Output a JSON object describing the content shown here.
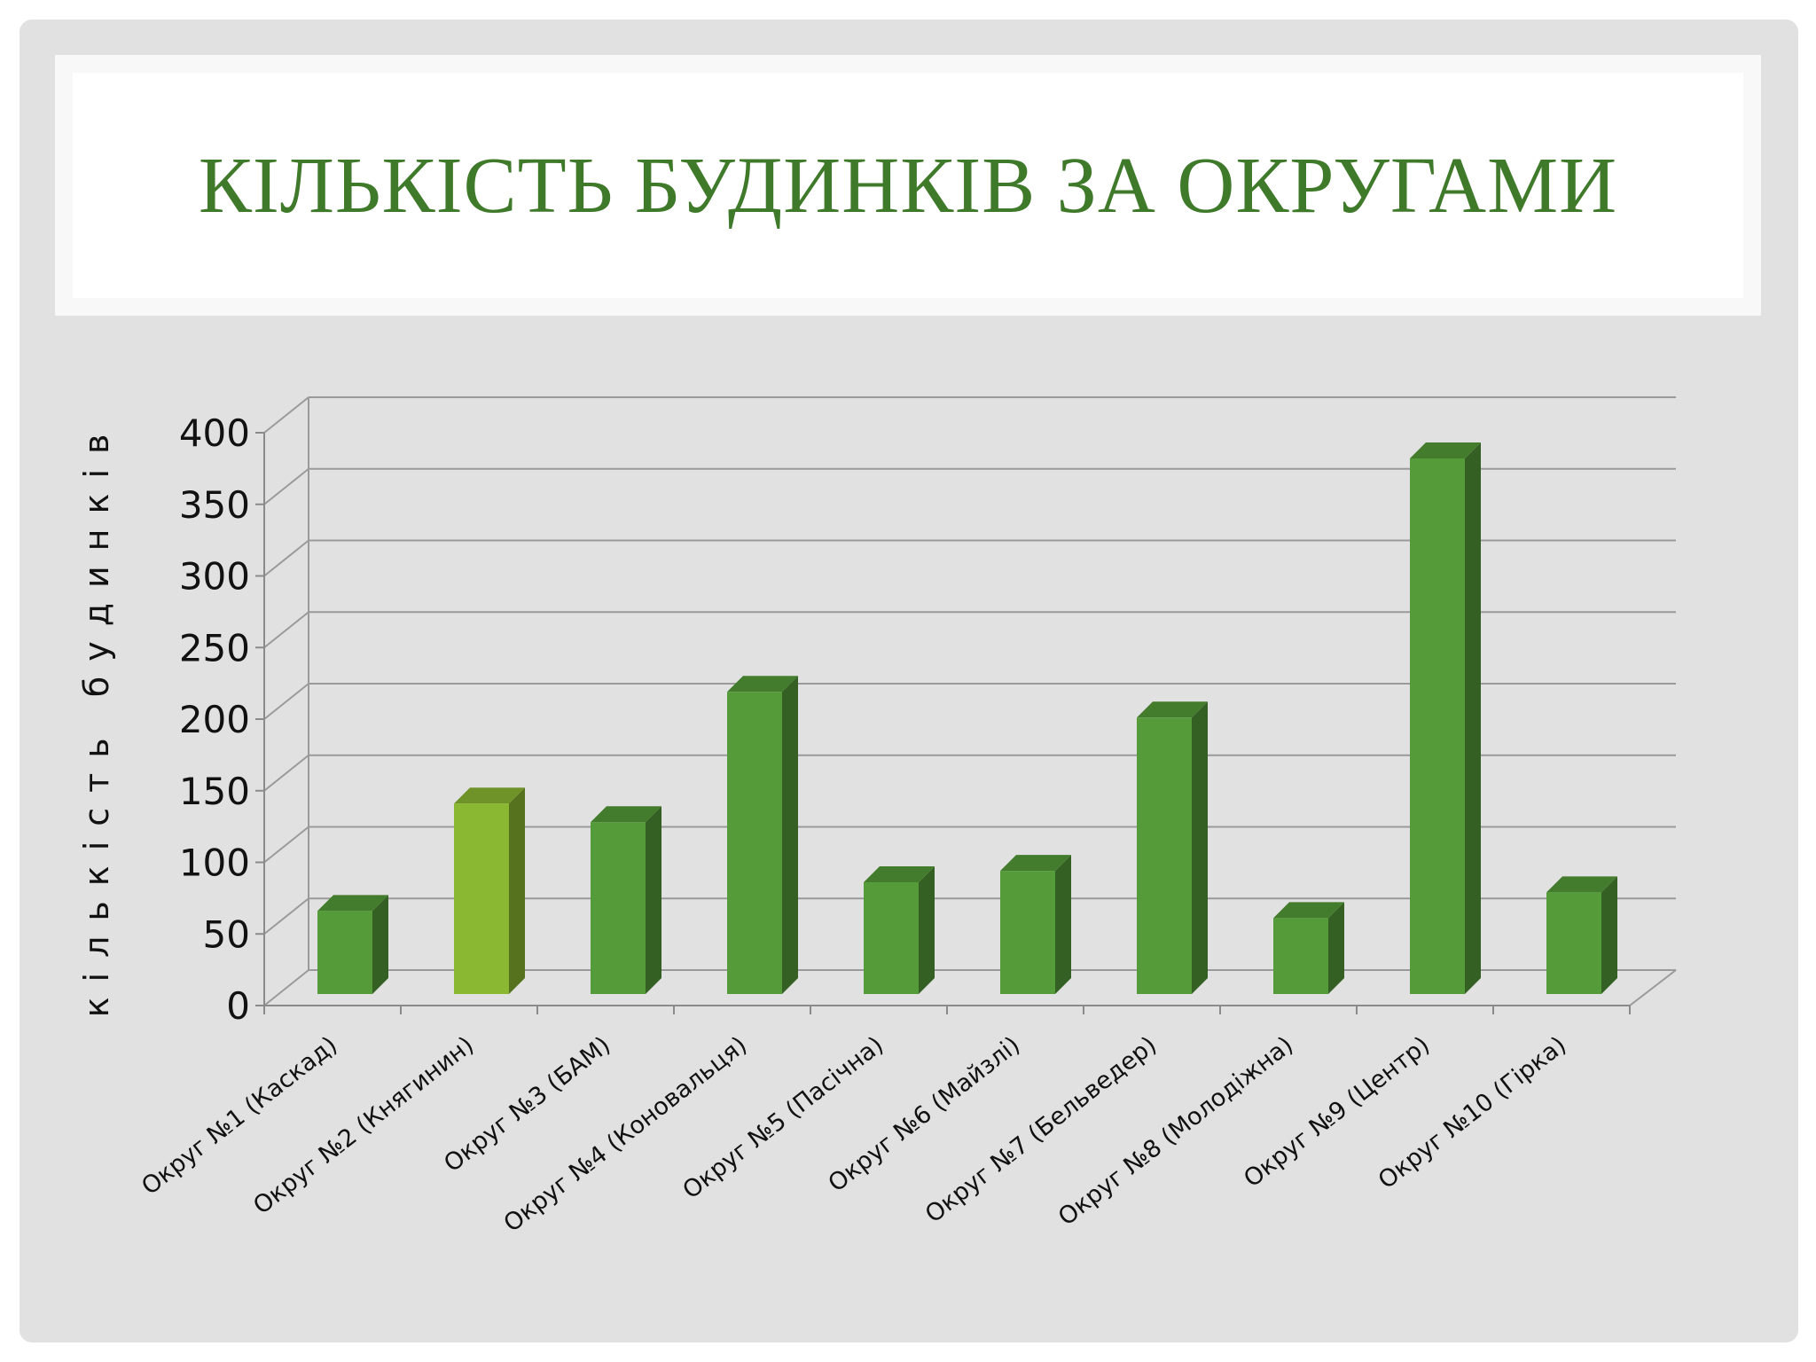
{
  "slide": {
    "title": "КІЛЬКІСТЬ БУДИНКІВ ЗА ОКРУГАМИ"
  },
  "chart_data": {
    "type": "bar",
    "ylabel": "кількість будинків",
    "xlabel": "",
    "ylim": [
      0,
      400
    ],
    "yticks": [
      0,
      50,
      100,
      150,
      200,
      250,
      300,
      350,
      400
    ],
    "grid": true,
    "legend": "none",
    "categories": [
      "Округ №1 (Каскад)",
      "Округ №2 (Княгинин)",
      "Округ №3 (БАМ)",
      "Округ №4 (Коновальця)",
      "Округ №5 (Пасічна)",
      "Округ №6 (Майзлі)",
      "Округ №7 (Бельведер)",
      "Округ №8 (Молодіжна)",
      "Округ №9 (Центр)",
      "Округ №10 (Гірка)"
    ],
    "values": [
      58,
      133,
      120,
      211,
      78,
      86,
      193,
      53,
      374,
      71
    ],
    "colors": {
      "bar": "#559b3a",
      "bar_highlight": "#8bb832",
      "highlight_index": 1
    }
  }
}
